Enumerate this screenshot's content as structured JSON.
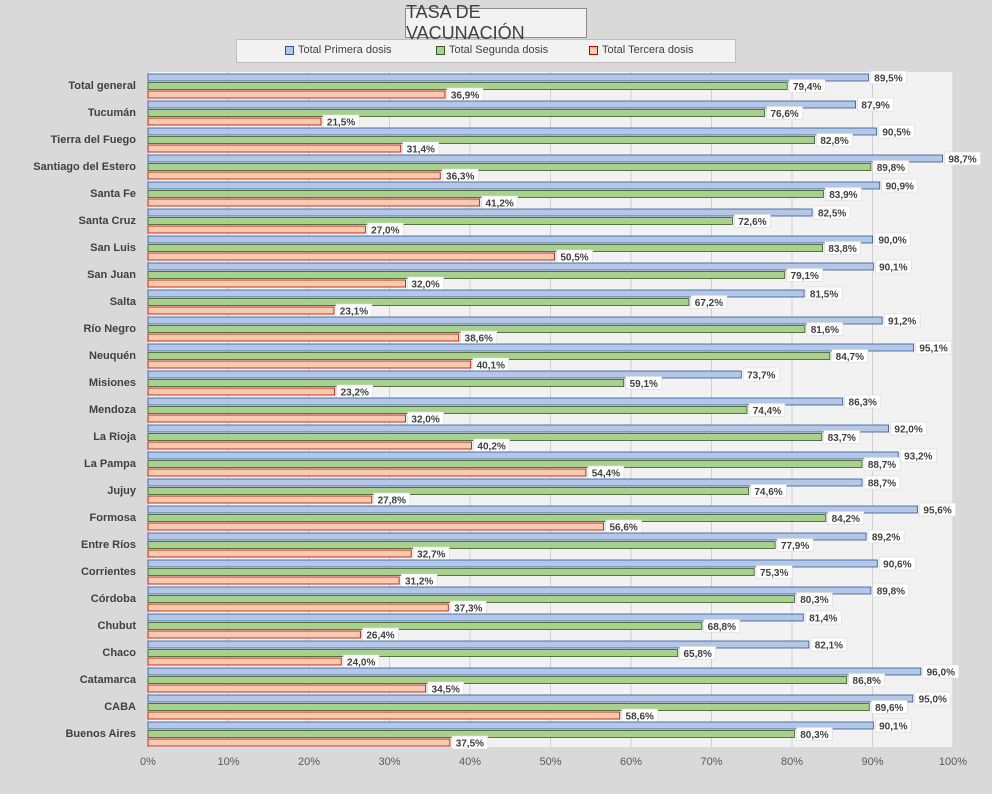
{
  "chart_data": {
    "type": "bar",
    "orientation": "horizontal",
    "title": "TASA DE VACUNACIÓN",
    "xlim": [
      0,
      100
    ],
    "x_ticks": [
      "0%",
      "10%",
      "20%",
      "30%",
      "40%",
      "50%",
      "60%",
      "70%",
      "80%",
      "90%",
      "100%"
    ],
    "categories": [
      "Total general",
      "Tucumán",
      "Tierra del Fuego",
      "Santiago del Estero",
      "Santa Fe",
      "Santa Cruz",
      "San Luis",
      "San Juan",
      "Salta",
      "Río Negro",
      "Neuquén",
      "Misiones",
      "Mendoza",
      "La Rioja",
      "La Pampa",
      "Jujuy",
      "Formosa",
      "Entre Ríos",
      "Corrientes",
      "Córdoba",
      "Chubut",
      "Chaco",
      "Catamarca",
      "CABA",
      "Buenos Aires"
    ],
    "series": [
      {
        "name": "Total Primera dosis",
        "color": "#b4c7e7",
        "stroke": "#2f5597",
        "values": [
          89.5,
          87.9,
          90.5,
          98.7,
          90.9,
          82.5,
          90.0,
          90.1,
          81.5,
          91.2,
          95.1,
          73.7,
          86.3,
          92.0,
          93.2,
          88.7,
          95.6,
          89.2,
          90.6,
          89.8,
          81.4,
          82.1,
          96.0,
          95.0,
          90.1
        ],
        "labels": [
          "89,5%",
          "87,9%",
          "90,5%",
          "98,7%",
          "90,9%",
          "82,5%",
          "90,0%",
          "90,1%",
          "81,5%",
          "91,2%",
          "95,1%",
          "73,7%",
          "86,3%",
          "92,0%",
          "93,2%",
          "88,7%",
          "95,6%",
          "89,2%",
          "90,6%",
          "89,8%",
          "81,4%",
          "82,1%",
          "96,0%",
          "95,0%",
          "90,1%"
        ]
      },
      {
        "name": "Total Segunda dosis",
        "color": "#a9d18e",
        "stroke": "#385723",
        "values": [
          79.4,
          76.6,
          82.8,
          89.8,
          83.9,
          72.6,
          83.8,
          79.1,
          67.2,
          81.6,
          84.7,
          59.1,
          74.4,
          83.7,
          88.7,
          74.6,
          84.2,
          77.9,
          75.3,
          80.3,
          68.8,
          65.8,
          86.8,
          89.6,
          80.3
        ],
        "labels": [
          "79,4%",
          "76,6%",
          "82,8%",
          "89,8%",
          "83,9%",
          "72,6%",
          "83,8%",
          "79,1%",
          "67,2%",
          "81,6%",
          "84,7%",
          "59,1%",
          "74,4%",
          "83,7%",
          "88,7%",
          "74,6%",
          "84,2%",
          "77,9%",
          "75,3%",
          "80,3%",
          "68,8%",
          "65,8%",
          "86,8%",
          "89,6%",
          "80,3%"
        ]
      },
      {
        "name": "Total Tercera dosis",
        "color": "#f8cbad",
        "stroke": "#c00000",
        "values": [
          36.9,
          21.5,
          31.4,
          36.3,
          41.2,
          27.0,
          50.5,
          32.0,
          23.1,
          38.6,
          40.1,
          23.2,
          32.0,
          40.2,
          54.4,
          27.8,
          56.6,
          32.7,
          31.2,
          37.3,
          26.4,
          24.0,
          34.5,
          58.6,
          37.5
        ],
        "labels": [
          "36,9%",
          "21,5%",
          "31,4%",
          "36,3%",
          "41,2%",
          "27,0%",
          "50,5%",
          "32,0%",
          "23,1%",
          "38,6%",
          "40,1%",
          "23,2%",
          "32,0%",
          "40,2%",
          "54,4%",
          "27,8%",
          "56,6%",
          "32,7%",
          "31,2%",
          "37,3%",
          "26,4%",
          "24,0%",
          "34,5%",
          "58,6%",
          "37,5%"
        ]
      }
    ]
  }
}
